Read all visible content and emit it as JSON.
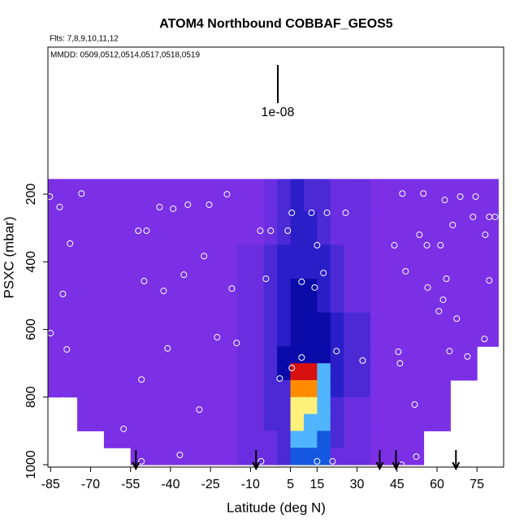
{
  "chart_data": {
    "type": "heatmap",
    "title": "ATOM4 Northbound COBBAF_GEOS5",
    "subtitle": "Flts: 7,8,9,10,11,12",
    "annotation": "MMDD: 0509,0512,0514,0517,0518,0519",
    "scale_label": "1e-08",
    "xlabel": "Latitude (deg N)",
    "ylabel": "PSXC (mbar)",
    "xlim": [
      -86,
      85
    ],
    "ylim": [
      1007,
      -235
    ],
    "xticks": [
      -85,
      -70,
      -55,
      -40,
      -25,
      -10,
      5,
      15,
      30,
      45,
      60,
      75
    ],
    "yticks": [
      200,
      400,
      600,
      800,
      1000
    ],
    "x_edges": [
      -86,
      -75,
      -65,
      -55,
      -45,
      -35,
      -25,
      -15,
      -5,
      0,
      5,
      10,
      15,
      20,
      25,
      35,
      45,
      55,
      65,
      75,
      83
    ],
    "y_edges": [
      155,
      250,
      350,
      450,
      550,
      650,
      700,
      750,
      800,
      850,
      900,
      950,
      1000
    ],
    "colors": [
      "#7b30e6",
      "#6a2ee0",
      "#4b2ad6",
      "#2a1ec8",
      "#0a0aa8",
      "#1458e0",
      "#50b4ff",
      "#fff07a",
      "#ff8c00",
      "#d81010"
    ],
    "values": [
      [
        0,
        0,
        0,
        0,
        0,
        0,
        0,
        0,
        1,
        2,
        3,
        2,
        2,
        1,
        1,
        0,
        0,
        0,
        0,
        0
      ],
      [
        0,
        0,
        0,
        0,
        0,
        0,
        0,
        0,
        1,
        2,
        3,
        3,
        2,
        1,
        1,
        0,
        0,
        0,
        0,
        0
      ],
      [
        0,
        0,
        0,
        0,
        0,
        0,
        0,
        1,
        2,
        3,
        3,
        3,
        3,
        2,
        1,
        0,
        0,
        0,
        0,
        0
      ],
      [
        0,
        0,
        0,
        0,
        0,
        0,
        0,
        1,
        2,
        3,
        4,
        4,
        3,
        2,
        1,
        0,
        0,
        0,
        0,
        0
      ],
      [
        0,
        0,
        0,
        0,
        0,
        0,
        0,
        1,
        2,
        3,
        4,
        4,
        4,
        3,
        2,
        0,
        0,
        0,
        0,
        0
      ],
      [
        0,
        0,
        0,
        0,
        0,
        0,
        0,
        1,
        2,
        4,
        4,
        4,
        4,
        3,
        2,
        0,
        0,
        0,
        0,
        null
      ],
      [
        0,
        0,
        0,
        0,
        0,
        0,
        0,
        1,
        2,
        4,
        9,
        9,
        6,
        3,
        2,
        0,
        0,
        0,
        0,
        null
      ],
      [
        0,
        0,
        0,
        0,
        0,
        0,
        0,
        1,
        2,
        2,
        8,
        8,
        6,
        3,
        2,
        0,
        0,
        0,
        null,
        null
      ],
      [
        null,
        0,
        0,
        0,
        0,
        0,
        0,
        1,
        2,
        2,
        7,
        7,
        6,
        2,
        1,
        0,
        0,
        0,
        null,
        null
      ],
      [
        null,
        0,
        0,
        0,
        0,
        0,
        0,
        1,
        2,
        2,
        7,
        6,
        6,
        2,
        1,
        0,
        0,
        0,
        null,
        null
      ],
      [
        null,
        null,
        0,
        0,
        0,
        0,
        0,
        1,
        1,
        2,
        6,
        6,
        5,
        2,
        1,
        0,
        0,
        null,
        null,
        null
      ],
      [
        null,
        null,
        null,
        0,
        0,
        0,
        0,
        1,
        1,
        2,
        5,
        5,
        5,
        1,
        1,
        0,
        0,
        null,
        null,
        null
      ]
    ],
    "points": {
      "x": [
        -85.3,
        -73.4,
        -81.6,
        -77.7,
        -80.4,
        -85,
        -78.9,
        -80.1,
        -57.6,
        -50.9,
        -50.9,
        -52.1,
        -49,
        -49.9,
        -44.1,
        -39,
        -33.5,
        -42.6,
        -41.1,
        -35,
        -27.4,
        -25.5,
        -22.5,
        -18.8,
        -17,
        -15.2,
        -29.2,
        -36.5,
        -6.3,
        -2.4,
        -4.2,
        4,
        5.5,
        12.9,
        18.7,
        25.7,
        9.2,
        15,
        17.4,
        14.1,
        9.2,
        5.5,
        1,
        22.3,
        32.1,
        45.5,
        46.1,
        44,
        48.2,
        56.2,
        61.3,
        53.4,
        47,
        54.9,
        62.9,
        68.7,
        74.5,
        65.9,
        73.5,
        79.6,
        81.8,
        78.1,
        56.5,
        63.5,
        60.7,
        62.3,
        79.6,
        67.4,
        77.8,
        64.7,
        71.4,
        70.2,
        51.6,
        15,
        20.8,
        -6,
        46.7,
        52.2
      ],
      "y": [
        207,
        198,
        238,
        346,
        495,
        611,
        659,
        810,
        894,
        748,
        990,
        308,
        308,
        457,
        238,
        243,
        231,
        486,
        656,
        438,
        383,
        231,
        623,
        200,
        479,
        640,
        837,
        971,
        308,
        308,
        450,
        308,
        255,
        255,
        255,
        255,
        459,
        351,
        433,
        476,
        683,
        714,
        745,
        664,
        692,
        666,
        700,
        351,
        428,
        351,
        351,
        320,
        198,
        198,
        217,
        207,
        207,
        291,
        267,
        267,
        267,
        320,
        476,
        450,
        546,
        512,
        455,
        568,
        628,
        664,
        680,
        772,
        822,
        990,
        990,
        990,
        1000,
        976
      ]
    },
    "arrows": [
      -53,
      -7.9,
      38.5,
      44.6,
      67.1
    ]
  }
}
